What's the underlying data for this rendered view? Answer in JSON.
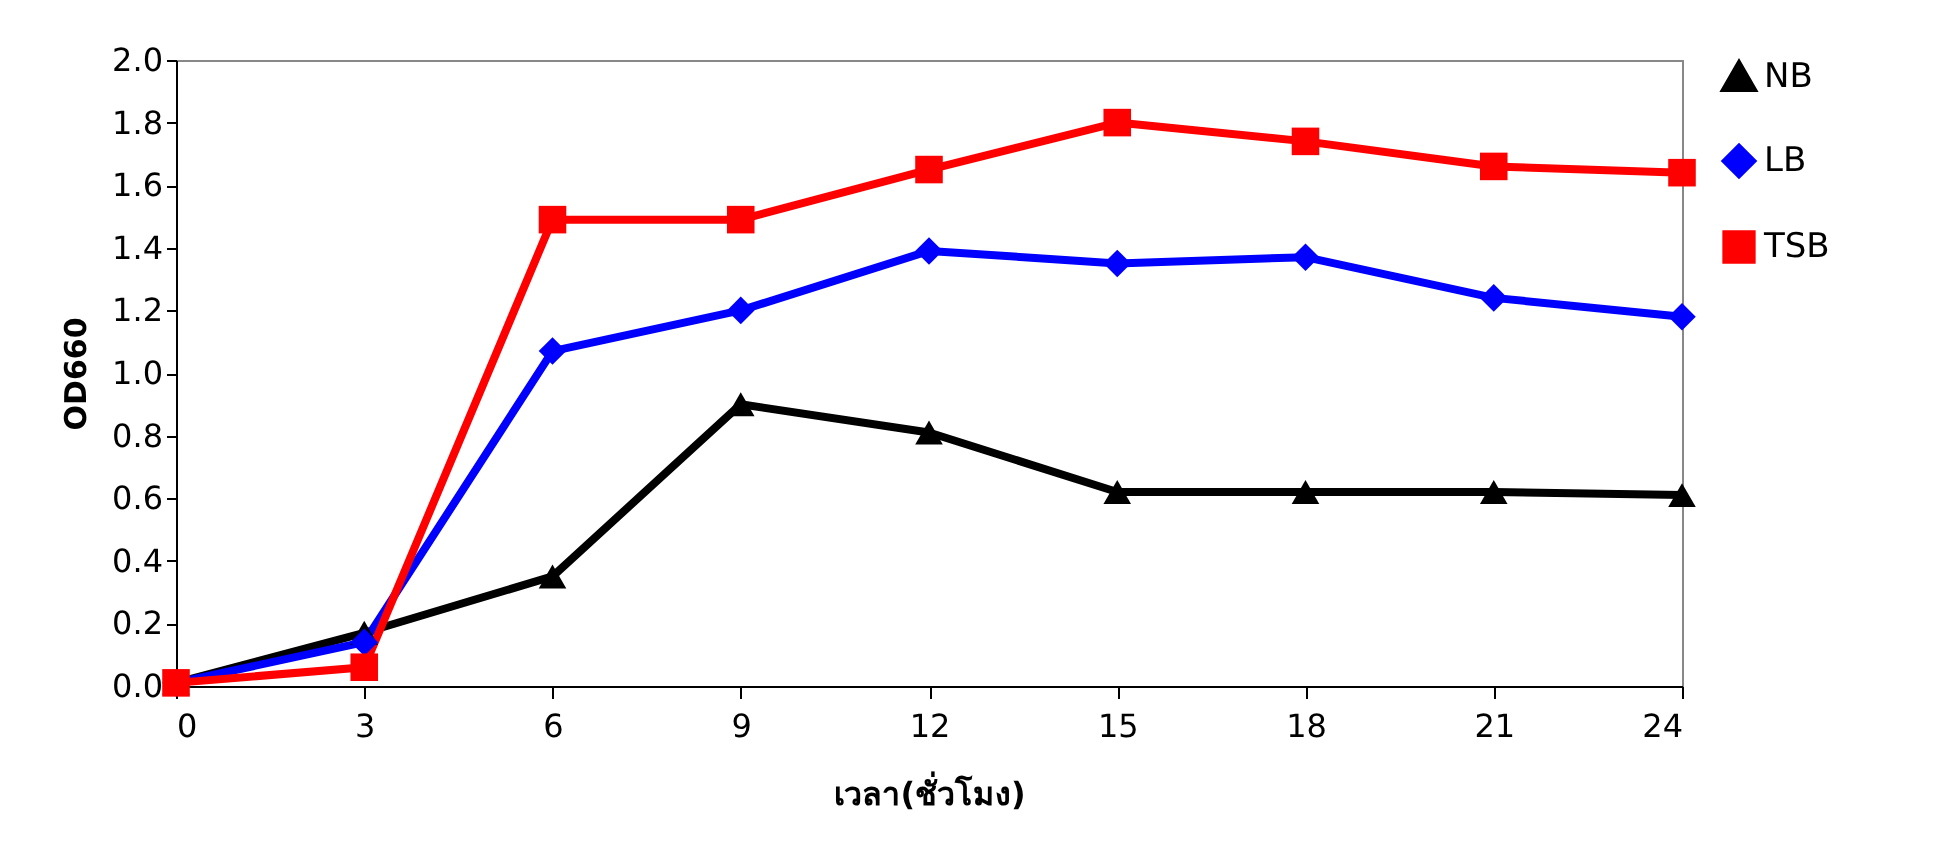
{
  "chart_data": {
    "type": "line",
    "xlabel": "เวลา(ชั่วโมง)",
    "ylabel": "OD660",
    "x": [
      0,
      3,
      6,
      9,
      12,
      15,
      18,
      21,
      24
    ],
    "series": [
      {
        "name": "NB",
        "color": "#000000",
        "marker": "triangle",
        "values": [
          0.01,
          0.17,
          0.35,
          0.9,
          0.81,
          0.62,
          0.62,
          0.62,
          0.61
        ]
      },
      {
        "name": "LB",
        "color": "#0000ff",
        "marker": "diamond",
        "values": [
          0.01,
          0.14,
          1.07,
          1.2,
          1.39,
          1.35,
          1.37,
          1.24,
          1.18
        ]
      },
      {
        "name": "TSB",
        "color": "#ff0000",
        "marker": "square",
        "values": [
          0.01,
          0.06,
          1.49,
          1.49,
          1.65,
          1.8,
          1.74,
          1.66,
          1.64
        ]
      }
    ],
    "xlim": [
      0,
      24
    ],
    "xticks": [
      0,
      3,
      6,
      9,
      12,
      15,
      18,
      21,
      24
    ],
    "ylim": [
      0,
      2
    ],
    "yticks": [
      {
        "value": 0,
        "label": "0.0"
      },
      {
        "value": 0.2,
        "label": "0.2"
      },
      {
        "value": 0.4,
        "label": "0.4"
      },
      {
        "value": 0.6,
        "label": "0.6"
      },
      {
        "value": 0.8,
        "label": "0.8"
      },
      {
        "value": 1,
        "label": "1.0"
      },
      {
        "value": 1.2,
        "label": "1.2"
      },
      {
        "value": 1.4,
        "label": "1.4"
      },
      {
        "value": 1.6,
        "label": "1.6"
      },
      {
        "value": 1.8,
        "label": "1.8"
      },
      {
        "value": 2,
        "label": "2.0"
      }
    ],
    "grid": false,
    "legend": "right",
    "line_style": "solid"
  }
}
